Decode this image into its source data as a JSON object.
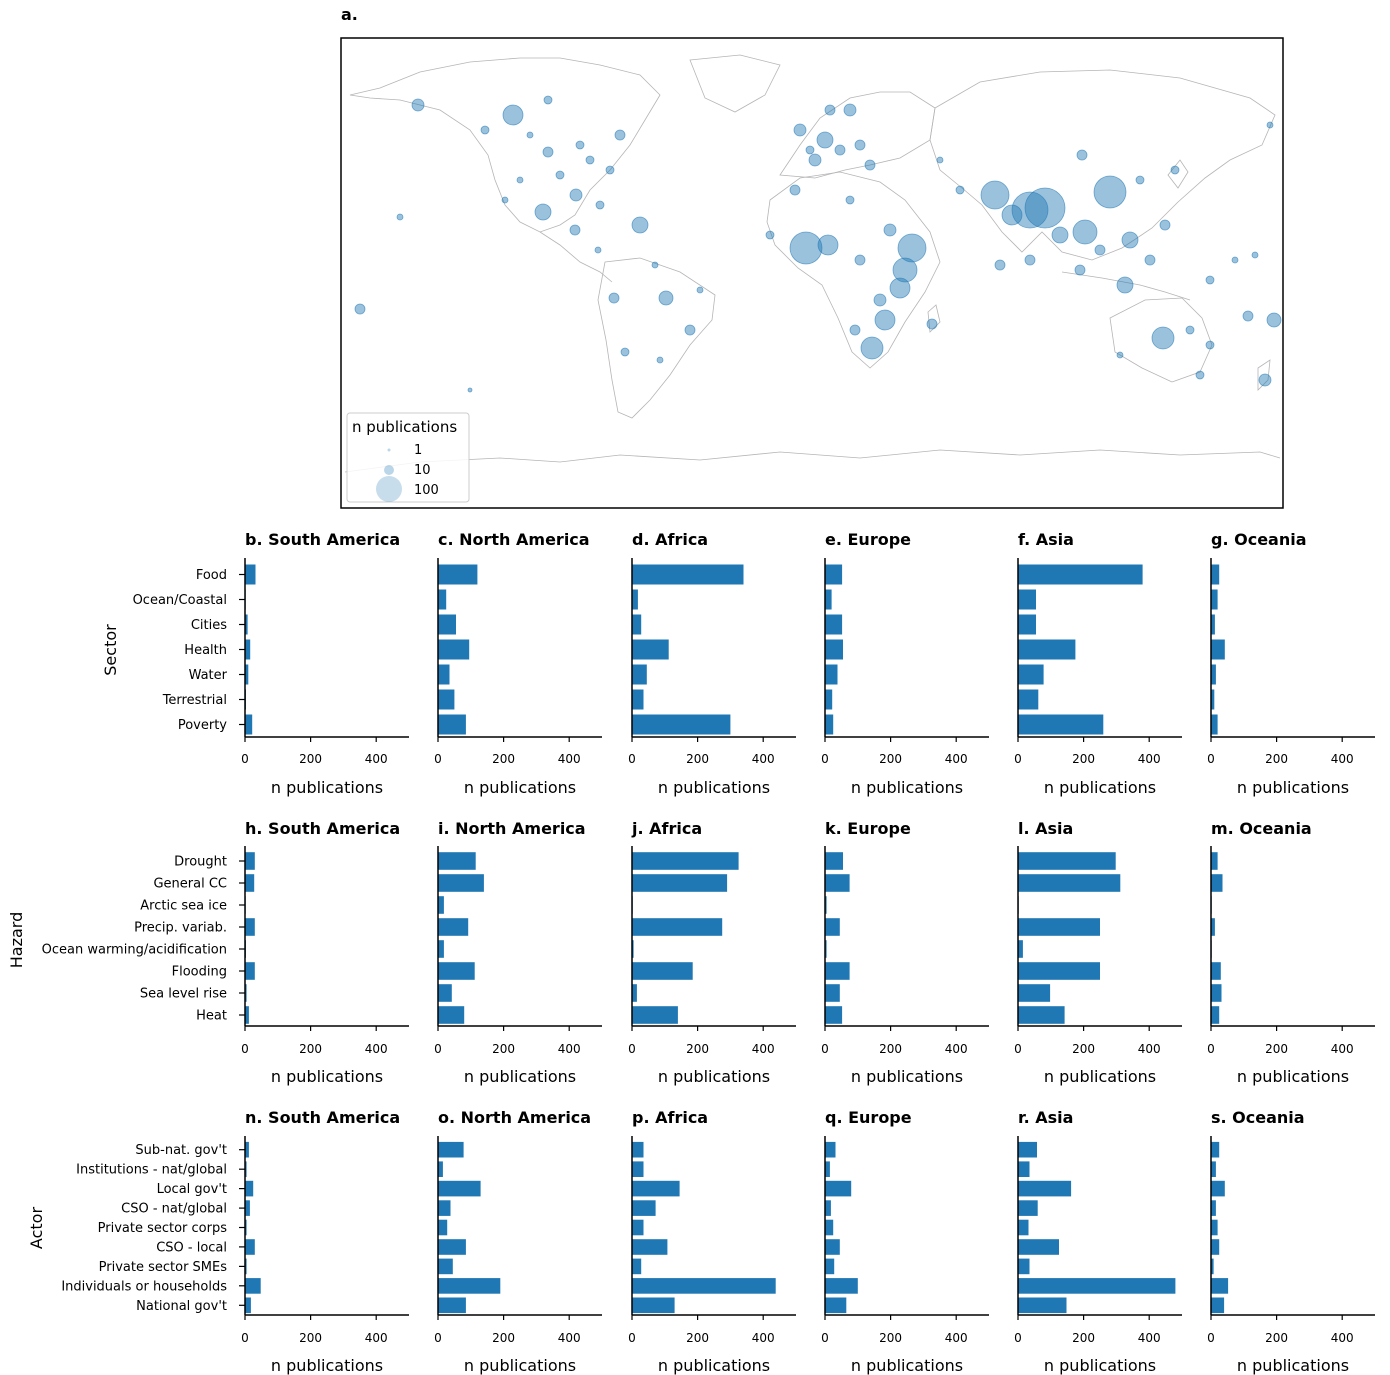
{
  "map_panel": {
    "title": "a.",
    "legend": {
      "title": "n publications",
      "items": [
        {
          "label": "1",
          "value": 1
        },
        {
          "label": "10",
          "value": 10
        },
        {
          "label": "100",
          "value": 100
        }
      ]
    },
    "marker_color": "#1f77b4"
  },
  "colors": {
    "bar": "#1f77b4",
    "axis": "#000000"
  },
  "chart_data": [
    {
      "type": "bar",
      "orientation": "horizontal",
      "row": "Sector",
      "categories": [
        "Food",
        "Ocean/Coastal",
        "Cities",
        "Health",
        "Water",
        "Terrestrial",
        "Poverty"
      ],
      "xlabel": "n publications",
      "xlim": [
        0,
        500
      ],
      "xticks": [
        0,
        200,
        400
      ],
      "panels": [
        {
          "title": "b. South America",
          "values": [
            32,
            2,
            8,
            16,
            10,
            3,
            22
          ]
        },
        {
          "title": "c. North America",
          "values": [
            120,
            25,
            55,
            95,
            35,
            50,
            85
          ]
        },
        {
          "title": "d. Africa",
          "values": [
            340,
            18,
            28,
            112,
            45,
            35,
            300
          ]
        },
        {
          "title": "e. Europe",
          "values": [
            52,
            20,
            52,
            55,
            38,
            22,
            25
          ]
        },
        {
          "title": "f. Asia",
          "values": [
            380,
            55,
            55,
            175,
            78,
            62,
            260
          ]
        },
        {
          "title": "g. Oceania",
          "values": [
            25,
            20,
            12,
            42,
            15,
            10,
            20
          ]
        }
      ]
    },
    {
      "type": "bar",
      "orientation": "horizontal",
      "row": "Hazard",
      "categories": [
        "Drought",
        "General CC",
        "Arctic sea ice",
        "Precip. variab.",
        "Ocean warming/acidification",
        "Flooding",
        "Sea level rise",
        "Heat"
      ],
      "xlabel": "n publications",
      "xlim": [
        0,
        500
      ],
      "xticks": [
        0,
        200,
        400
      ],
      "panels": [
        {
          "title": "h. South America",
          "values": [
            30,
            28,
            2,
            30,
            3,
            30,
            5,
            12
          ]
        },
        {
          "title": "i. North America",
          "values": [
            115,
            140,
            18,
            92,
            18,
            112,
            42,
            80
          ]
        },
        {
          "title": "j. Africa",
          "values": [
            325,
            290,
            2,
            275,
            5,
            185,
            15,
            140
          ]
        },
        {
          "title": "k. Europe",
          "values": [
            55,
            75,
            5,
            45,
            5,
            75,
            45,
            52
          ]
        },
        {
          "title": "l. Asia",
          "values": [
            298,
            312,
            2,
            250,
            15,
            250,
            98,
            142
          ]
        },
        {
          "title": "m. Oceania",
          "values": [
            20,
            35,
            2,
            12,
            2,
            30,
            32,
            25
          ]
        }
      ]
    },
    {
      "type": "bar",
      "orientation": "horizontal",
      "row": "Actor",
      "categories": [
        "Sub-nat. gov't",
        "Institutions - nat/global",
        "Local gov't",
        "CSO - nat/global",
        "Private sector corps",
        "CSO - local",
        "Private sector SMEs",
        "Individuals or households",
        "National gov't"
      ],
      "xlabel": "n publications",
      "xlim": [
        0,
        500
      ],
      "xticks": [
        0,
        200,
        400
      ],
      "panels": [
        {
          "title": "n. South America",
          "values": [
            12,
            5,
            25,
            15,
            5,
            30,
            5,
            48,
            18
          ]
        },
        {
          "title": "o. North America",
          "values": [
            78,
            15,
            130,
            38,
            28,
            85,
            45,
            190,
            85
          ]
        },
        {
          "title": "p. Africa",
          "values": [
            35,
            35,
            145,
            72,
            35,
            108,
            28,
            438,
            130
          ]
        },
        {
          "title": "q. Europe",
          "values": [
            32,
            15,
            80,
            18,
            25,
            45,
            28,
            100,
            65
          ]
        },
        {
          "title": "r. Asia",
          "values": [
            58,
            35,
            162,
            60,
            32,
            125,
            35,
            480,
            148
          ]
        },
        {
          "title": "s. Oceania",
          "values": [
            25,
            15,
            42,
            15,
            20,
            25,
            8,
            52,
            40
          ]
        }
      ]
    }
  ]
}
